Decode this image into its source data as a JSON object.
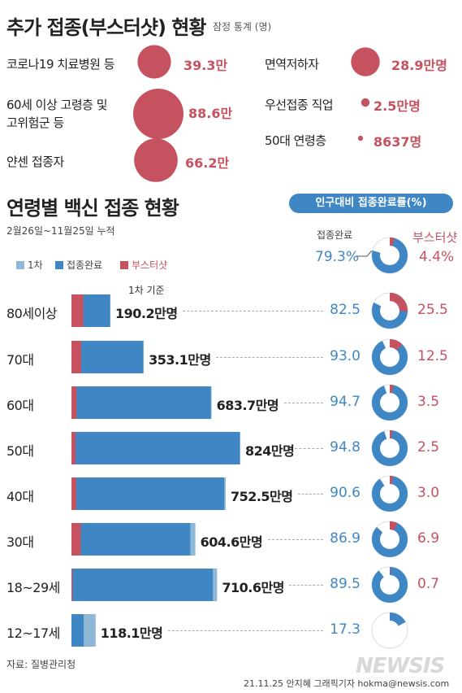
{
  "additional": {
    "title": "추가 접종(부스터샷) 현황",
    "note": "잠정 통계 (명)",
    "color": "#c6525f",
    "items": [
      {
        "label": "코로나19 치료병원 등",
        "value_text": "39.3만",
        "value": 39.3
      },
      {
        "label_line1": "60세 이상 고령층 및",
        "label_line2": "고위험군 등",
        "value_text": "88.6만",
        "value": 88.6
      },
      {
        "label": "얀센 접종자",
        "value_text": "66.2만",
        "value": 66.2
      },
      {
        "label": "면역저하자",
        "value_text": "28.9만명",
        "value": 28.9
      },
      {
        "label": "우선접종 직업",
        "value_text": "2.5만명",
        "value": 2.5
      },
      {
        "label": "50대 연령층",
        "value_text": "8637명",
        "value": 0.8637
      }
    ]
  },
  "main": {
    "title": "연령별 백신 접종 현황",
    "period": "2월26일~11월25일 누적",
    "rate_badge": "인구대비 접종완료률(%)",
    "basis_note": "1차 기준",
    "overall": {
      "full_label": "접종완료",
      "full_text": "79.3%",
      "full": 79.3,
      "boost_label": "부스터샷",
      "boost_text": "4.4%",
      "boost": 4.4
    }
  },
  "legend": {
    "first": "1차",
    "full": "접종완료",
    "boost": "부스터샷"
  },
  "colors": {
    "first": "#8fb8d6",
    "full": "#3f87c4",
    "boost": "#c6525f",
    "ring_bg": "#ffffff"
  },
  "chart_data": {
    "type": "bar",
    "orientation": "horizontal",
    "categories": [
      "80세이상",
      "70대",
      "60대",
      "50대",
      "40대",
      "30대",
      "18~29세",
      "12~17세"
    ],
    "first_dose_text": [
      "190.2만명",
      "353.1만명",
      "683.7만명",
      "824만명",
      "752.5만명",
      "604.6만명",
      "710.6만명",
      "118.1만명"
    ],
    "series": [
      {
        "name": "1차",
        "values": [
          190.2,
          353.1,
          683.7,
          824.0,
          752.5,
          604.6,
          710.6,
          118.1
        ]
      },
      {
        "name": "접종완료",
        "values": [
          188.0,
          350.0,
          680.0,
          821.0,
          745.0,
          580.0,
          690.0,
          60.0
        ]
      },
      {
        "name": "부스터샷",
        "values": [
          58.0,
          47.0,
          25.0,
          20.0,
          23.0,
          45.0,
          5.0,
          0.0
        ]
      }
    ],
    "full_rate": [
      82.5,
      93.0,
      94.7,
      94.8,
      90.6,
      86.9,
      89.5,
      17.3
    ],
    "full_rate_text": [
      "82.5",
      "93.0",
      "94.7",
      "94.8",
      "90.6",
      "86.9",
      "89.5",
      "17.3"
    ],
    "boost_rate": [
      25.5,
      12.5,
      3.5,
      2.5,
      3.0,
      6.9,
      0.7,
      0.0
    ],
    "boost_rate_text": [
      "25.5",
      "12.5",
      "3.5",
      "2.5",
      "3.0",
      "6.9",
      "0.7",
      ""
    ],
    "xlim": [
      0,
      900
    ]
  },
  "source": "자료: 질병관리청",
  "credit": "21.11.25 안지혜 그래픽기자  hokma@newsis.com",
  "watermark": "NEWSIS"
}
